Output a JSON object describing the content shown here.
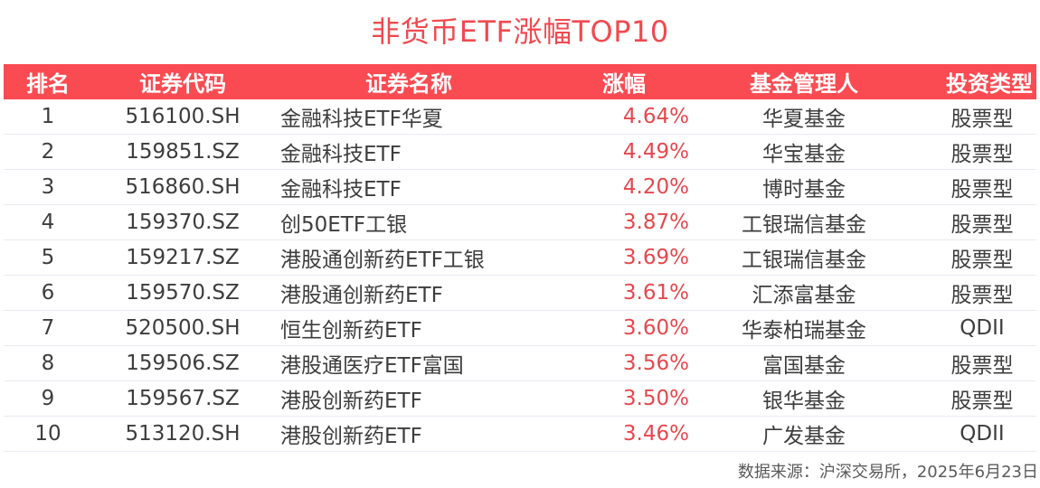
{
  "title": "非货币ETF涨幅TOP10",
  "table": {
    "headers": [
      "排名",
      "证券代码",
      "证券名称",
      "涨幅",
      "基金管理人",
      "投资类型"
    ],
    "rows": [
      {
        "rank": "1",
        "code": "516100.SH",
        "name": "金融科技ETF华夏",
        "change": "4.64%",
        "manager": "华夏基金",
        "type": "股票型"
      },
      {
        "rank": "2",
        "code": "159851.SZ",
        "name": "金融科技ETF",
        "change": "4.49%",
        "manager": "华宝基金",
        "type": "股票型"
      },
      {
        "rank": "3",
        "code": "516860.SH",
        "name": "金融科技ETF",
        "change": "4.20%",
        "manager": "博时基金",
        "type": "股票型"
      },
      {
        "rank": "4",
        "code": "159370.SZ",
        "name": "创50ETF工银",
        "change": "3.87%",
        "manager": "工银瑞信基金",
        "type": "股票型"
      },
      {
        "rank": "5",
        "code": "159217.SZ",
        "name": "港股通创新药ETF工银",
        "change": "3.69%",
        "manager": "工银瑞信基金",
        "type": "股票型"
      },
      {
        "rank": "6",
        "code": "159570.SZ",
        "name": "港股通创新药ETF",
        "change": "3.61%",
        "manager": "汇添富基金",
        "type": "股票型"
      },
      {
        "rank": "7",
        "code": "520500.SH",
        "name": "恒生创新药ETF",
        "change": "3.60%",
        "manager": "华泰柏瑞基金",
        "type": "QDII"
      },
      {
        "rank": "8",
        "code": "159506.SZ",
        "name": "港股通医疗ETF富国",
        "change": "3.56%",
        "manager": "富国基金",
        "type": "股票型"
      },
      {
        "rank": "9",
        "code": "159567.SZ",
        "name": "港股创新药ETF",
        "change": "3.50%",
        "manager": "银华基金",
        "type": "股票型"
      },
      {
        "rank": "10",
        "code": "513120.SH",
        "name": "港股创新药ETF",
        "change": "3.46%",
        "manager": "广发基金",
        "type": "QDII"
      }
    ]
  },
  "footer": "数据来源：沪深交易所，2025年6月23日",
  "colors": {
    "accent": "#fb4b52",
    "title": "#f04a4f",
    "positive": "#e5484d"
  }
}
